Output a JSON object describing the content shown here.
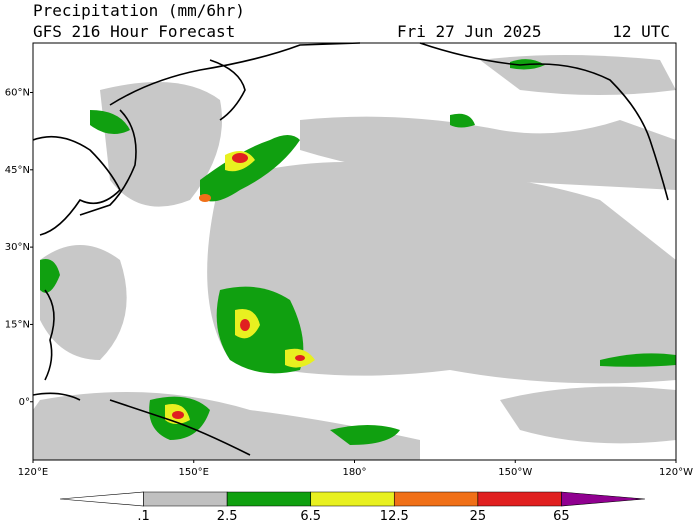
{
  "header": {
    "title": "Precipitation (mm/6hr)",
    "subtitle": "GFS 216 Hour Forecast",
    "date": "Fri 27 Jun 2025",
    "time": "12 UTC"
  },
  "map": {
    "lon_range": [
      120,
      240
    ],
    "lat_range": [
      -11.3,
      69.6
    ],
    "lat_ticks": [
      {
        "value": 60,
        "label": "60°N"
      },
      {
        "value": 45,
        "label": "45°N"
      },
      {
        "value": 30,
        "label": "30°N"
      },
      {
        "value": 15,
        "label": "15°N"
      },
      {
        "value": 0,
        "label": "0°"
      }
    ],
    "lon_ticks": [
      {
        "value": 120,
        "label": "120°E"
      },
      {
        "value": 150,
        "label": "150°E"
      },
      {
        "value": 180,
        "label": "180°"
      },
      {
        "value": 210,
        "label": "150°W"
      },
      {
        "value": 240,
        "label": "120°W"
      }
    ]
  },
  "colorbar": {
    "levels": [
      {
        "value": 0.1,
        "label": ".1"
      },
      2.5,
      6.5,
      12.5,
      25,
      65
    ],
    "colors": [
      "#ffffff",
      "#c0c0c0",
      "#10a010",
      "#e8f020",
      "#f07018",
      "#e02020",
      "#900090"
    ]
  }
}
